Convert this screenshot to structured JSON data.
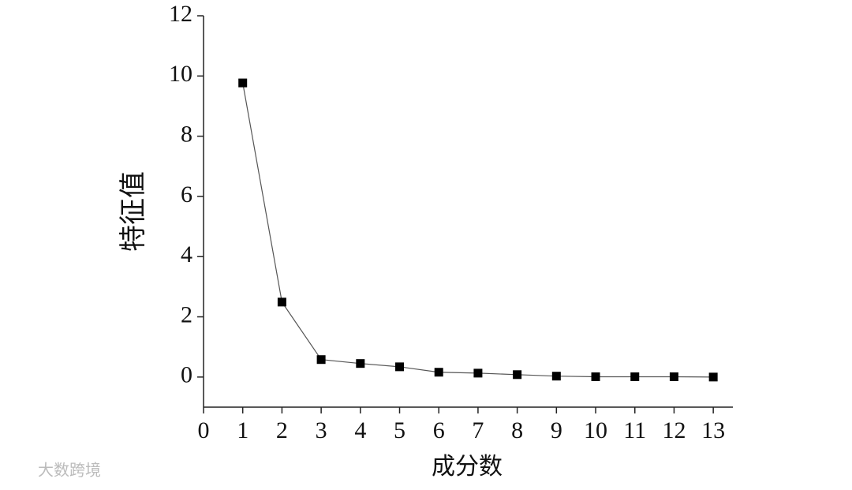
{
  "chart_data": {
    "type": "line",
    "x_label": "成分数",
    "y_label": "特征值",
    "x": [
      1,
      2,
      3,
      4,
      5,
      6,
      7,
      8,
      9,
      10,
      11,
      12,
      13
    ],
    "series": [
      {
        "name": "特征值",
        "color": "#000000",
        "values": [
          9.77,
          2.49,
          0.58,
          0.45,
          0.34,
          0.16,
          0.13,
          0.08,
          0.03,
          0.01,
          0.01,
          0.01,
          0
        ]
      }
    ],
    "xlim": [
      0,
      13.5
    ],
    "xticks": [
      0,
      1,
      2,
      3,
      4,
      5,
      6,
      7,
      8,
      9,
      10,
      11,
      12,
      13
    ],
    "ylim": [
      -1,
      12
    ],
    "yticks": [
      0,
      2,
      4,
      6,
      8,
      10,
      12
    ],
    "grid": false,
    "marker": "square"
  },
  "watermark": "大数跨境"
}
